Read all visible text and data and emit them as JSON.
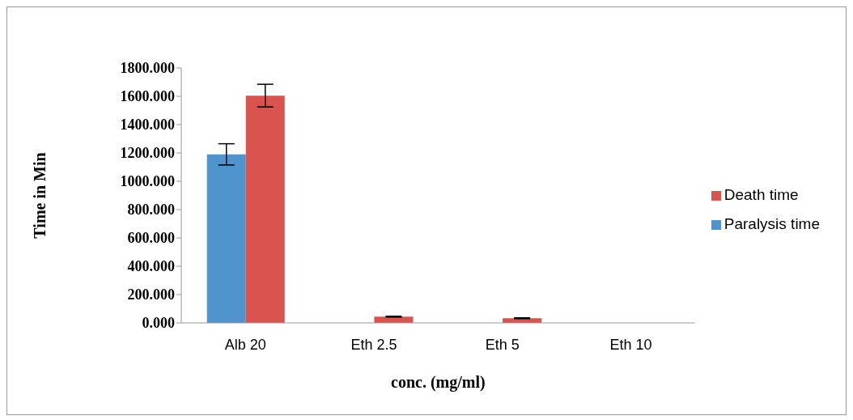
{
  "chart_data": {
    "type": "bar",
    "xlabel": "conc. (mg/ml)",
    "ylabel": "Time in Min",
    "categories": [
      "Alb 20",
      "Eth 2.5",
      "Eth 5",
      "Eth 10"
    ],
    "series": [
      {
        "name": "Paralysis time",
        "color": "#4f94cd",
        "values": [
          1190,
          0,
          0,
          0
        ],
        "errors": [
          75,
          null,
          null,
          null
        ]
      },
      {
        "name": "Death time",
        "color": "#d9534f",
        "values": [
          1605,
          44,
          33,
          0
        ],
        "errors": [
          80,
          3,
          3,
          null
        ]
      }
    ],
    "ylim": [
      0,
      1800
    ],
    "yticks": [
      {
        "value": 0,
        "label": "0.000"
      },
      {
        "value": 200,
        "label": "200.000"
      },
      {
        "value": 400,
        "label": "400.000"
      },
      {
        "value": 600,
        "label": "600.000"
      },
      {
        "value": 800,
        "label": "800.000"
      },
      {
        "value": 1000,
        "label": "1000.000"
      },
      {
        "value": 1200,
        "label": "1200.000"
      },
      {
        "value": 1400,
        "label": "1400.000"
      },
      {
        "value": 1600,
        "label": "1600.000"
      },
      {
        "value": 1800,
        "label": "1800.000"
      }
    ],
    "grid": false,
    "legend": "right"
  }
}
